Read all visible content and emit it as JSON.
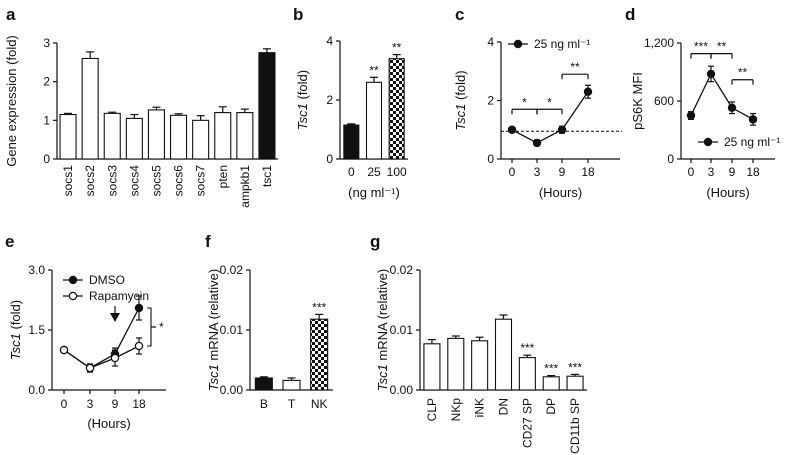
{
  "chart_data": [
    {
      "id": "a",
      "panel_label": "a",
      "type": "bar",
      "categories": [
        "socs1",
        "socs2",
        "socs3",
        "socs4",
        "socs5",
        "socs6",
        "socs7",
        "pten",
        "ampkb1",
        "tsc1"
      ],
      "values": [
        1.15,
        2.6,
        1.18,
        1.05,
        1.27,
        1.13,
        1.0,
        1.2,
        1.2,
        2.75
      ],
      "errors": [
        0.03,
        0.17,
        0.03,
        0.1,
        0.07,
        0.04,
        0.12,
        0.15,
        0.09,
        0.1
      ],
      "fills": [
        "white",
        "white",
        "white",
        "white",
        "white",
        "white",
        "white",
        "white",
        "white",
        "black"
      ],
      "ylabel": "Gene expression (fold)",
      "ylim": [
        0,
        3
      ],
      "yticks": [
        "0",
        "1",
        "2",
        "3"
      ],
      "grid": false
    },
    {
      "id": "b",
      "panel_label": "b",
      "type": "bar",
      "categories": [
        "0",
        "25",
        "100"
      ],
      "values": [
        1.15,
        2.6,
        3.4
      ],
      "errors": [
        0.04,
        0.17,
        0.14
      ],
      "fills": [
        "black",
        "white",
        "checker"
      ],
      "significance": [
        "",
        "**",
        "**"
      ],
      "ylabel": "Tsc1 (fold)",
      "xlabel": "(ng ml⁻¹)",
      "ylim": [
        0,
        4
      ],
      "yticks": [
        "0",
        "2",
        "4"
      ],
      "grid": false
    },
    {
      "id": "c",
      "panel_label": "c",
      "type": "line",
      "categories": [
        "0",
        "3",
        "9",
        "18"
      ],
      "series": [
        {
          "name": "25 ng ml⁻¹",
          "values": [
            1.0,
            0.55,
            1.0,
            2.3
          ],
          "errors": [
            0.05,
            0.1,
            0.12,
            0.22
          ],
          "marker": "filled"
        }
      ],
      "reference_line": 0.95,
      "brackets": [
        {
          "from": 0,
          "to": 1,
          "label": "*",
          "y": 1.7
        },
        {
          "from": 1,
          "to": 2,
          "label": "*",
          "y": 1.7
        },
        {
          "from": 2,
          "to": 3,
          "label": "**",
          "y": 2.9
        }
      ],
      "ylabel": "Tsc1 (fold)",
      "xlabel": "(Hours)",
      "ylim": [
        0,
        4
      ],
      "yticks": [
        "0",
        "2",
        "4"
      ],
      "legend": "top-left",
      "grid": false
    },
    {
      "id": "d",
      "panel_label": "d",
      "type": "line",
      "categories": [
        "0",
        "3",
        "9",
        "18"
      ],
      "series": [
        {
          "name": "25 ng ml⁻¹",
          "values": [
            450,
            880,
            530,
            410
          ],
          "errors": [
            40,
            80,
            60,
            60
          ],
          "marker": "filled"
        }
      ],
      "brackets": [
        {
          "from": 0,
          "to": 1,
          "label": "***",
          "y": 1090
        },
        {
          "from": 1,
          "to": 2,
          "label": "**",
          "y": 1090
        },
        {
          "from": 2,
          "to": 3,
          "label": "**",
          "y": 820
        }
      ],
      "ylabel": "pS6K MFI",
      "xlabel": "(Hours)",
      "ylim": [
        0,
        1200
      ],
      "yticks": [
        "0",
        "600",
        "1,200"
      ],
      "legend": "bottom-left",
      "grid": false
    },
    {
      "id": "e",
      "panel_label": "e",
      "type": "line",
      "categories": [
        "0",
        "3",
        "9",
        "18"
      ],
      "series": [
        {
          "name": "DMSO",
          "values": [
            1.0,
            0.55,
            0.9,
            2.05
          ],
          "errors": [
            0.05,
            0.1,
            0.15,
            0.3
          ],
          "marker": "filled"
        },
        {
          "name": "Rapamycin",
          "values": [
            1.0,
            0.55,
            0.8,
            1.1
          ],
          "errors": [
            0.05,
            0.1,
            0.2,
            0.2
          ],
          "marker": "open"
        }
      ],
      "arrow_at": "9",
      "side_bracket": "*",
      "ylabel": "Tsc1 (fold)",
      "xlabel": "(Hours)",
      "ylim": [
        0,
        3
      ],
      "yticks": [
        "0.0",
        "1.5",
        "3.0"
      ],
      "legend": "top-left",
      "grid": false
    },
    {
      "id": "f",
      "panel_label": "f",
      "type": "bar",
      "categories": [
        "B",
        "T",
        "NK"
      ],
      "values": [
        0.002,
        0.0016,
        0.0118
      ],
      "errors": [
        0.0002,
        0.0004,
        0.0008
      ],
      "fills": [
        "black",
        "white",
        "checker"
      ],
      "significance": [
        "",
        "",
        "***"
      ],
      "ylabel": "Tsc1 mRNA (relative)",
      "ylim": [
        0,
        0.02
      ],
      "yticks": [
        "0.00",
        "0.01",
        "0.02"
      ],
      "grid": false
    },
    {
      "id": "g",
      "panel_label": "g",
      "type": "bar",
      "categories": [
        "CLP",
        "NKp",
        "iNK",
        "DN",
        "CD27 SP",
        "DP",
        "CD11b SP"
      ],
      "values": [
        0.0077,
        0.0086,
        0.0082,
        0.0118,
        0.0054,
        0.0022,
        0.0023
      ],
      "errors": [
        0.0007,
        0.0004,
        0.0006,
        0.0007,
        0.0004,
        0.0002,
        0.0003
      ],
      "fills": [
        "white",
        "white",
        "white",
        "white",
        "white",
        "white",
        "white"
      ],
      "significance": [
        "",
        "",
        "",
        "",
        "***",
        "***",
        "***"
      ],
      "ylabel": "Tsc1 mRNA (relative)",
      "ylim": [
        0,
        0.02
      ],
      "yticks": [
        "0.00",
        "0.01",
        "0.02"
      ],
      "grid": false
    }
  ]
}
